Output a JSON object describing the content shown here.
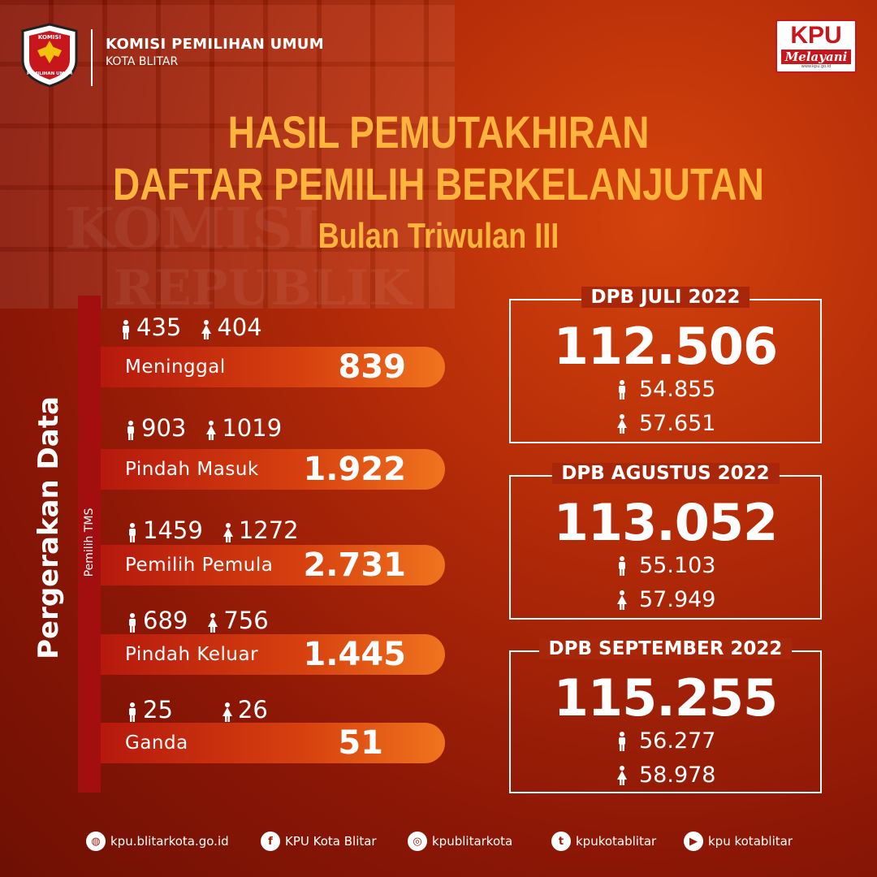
{
  "header": {
    "org_name": "KOMISI PEMILIHAN UMUM",
    "org_city": "KOTA BLITAR",
    "logo_text_top": "KOMISI",
    "logo_text_bottom": "PEMILIHAN UMUM",
    "badge": {
      "kpu": "KPU",
      "melayani": "Melayani",
      "url": "www.kpu.go.id"
    }
  },
  "titles": {
    "line1": "HASIL PEMUTAKHIRAN",
    "line2": "DAFTAR PEMILIH BERKELANJUTAN",
    "line3": "Bulan Triwulan III"
  },
  "left": {
    "vertical_title": "Pergerakan Data",
    "vertical_subtitle": "Pemilih TMS",
    "items": [
      {
        "label": "Meninggal",
        "male": "435",
        "female": "404",
        "total": "839"
      },
      {
        "label": "Pindah Masuk",
        "male": "903",
        "female": "1019",
        "total": "1.922"
      },
      {
        "label": "Pemilih Pemula",
        "male": "1459",
        "female": "1272",
        "total": "2.731"
      },
      {
        "label": "Pindah Keluar",
        "male": "689",
        "female": "756",
        "total": "1.445"
      },
      {
        "label": "Ganda",
        "male": "25",
        "female": "26",
        "total": "51"
      }
    ]
  },
  "dpb": [
    {
      "title": "DPB JULI 2022",
      "total": "112.506",
      "male": "54.855",
      "female": "57.651"
    },
    {
      "title": "DPB AGUSTUS 2022",
      "total": "113.052",
      "male": "55.103",
      "female": "57.949"
    },
    {
      "title": "DPB SEPTEMBER 2022",
      "total": "115.255",
      "male": "56.277",
      "female": "58.978"
    }
  ],
  "footer": [
    {
      "icon": "globe-icon",
      "text": "kpu.blitarkota.go.id"
    },
    {
      "icon": "facebook-icon",
      "text": "KPU Kota Blitar"
    },
    {
      "icon": "instagram-icon",
      "text": "kpublitarkota"
    },
    {
      "icon": "twitter-icon",
      "text": "kpukotablitar"
    },
    {
      "icon": "youtube-icon",
      "text": "kpu kotablitar"
    }
  ],
  "colors": {
    "title": "#ffb53d",
    "accent_red": "#c8171c",
    "bar_red": "#a30f0f"
  }
}
